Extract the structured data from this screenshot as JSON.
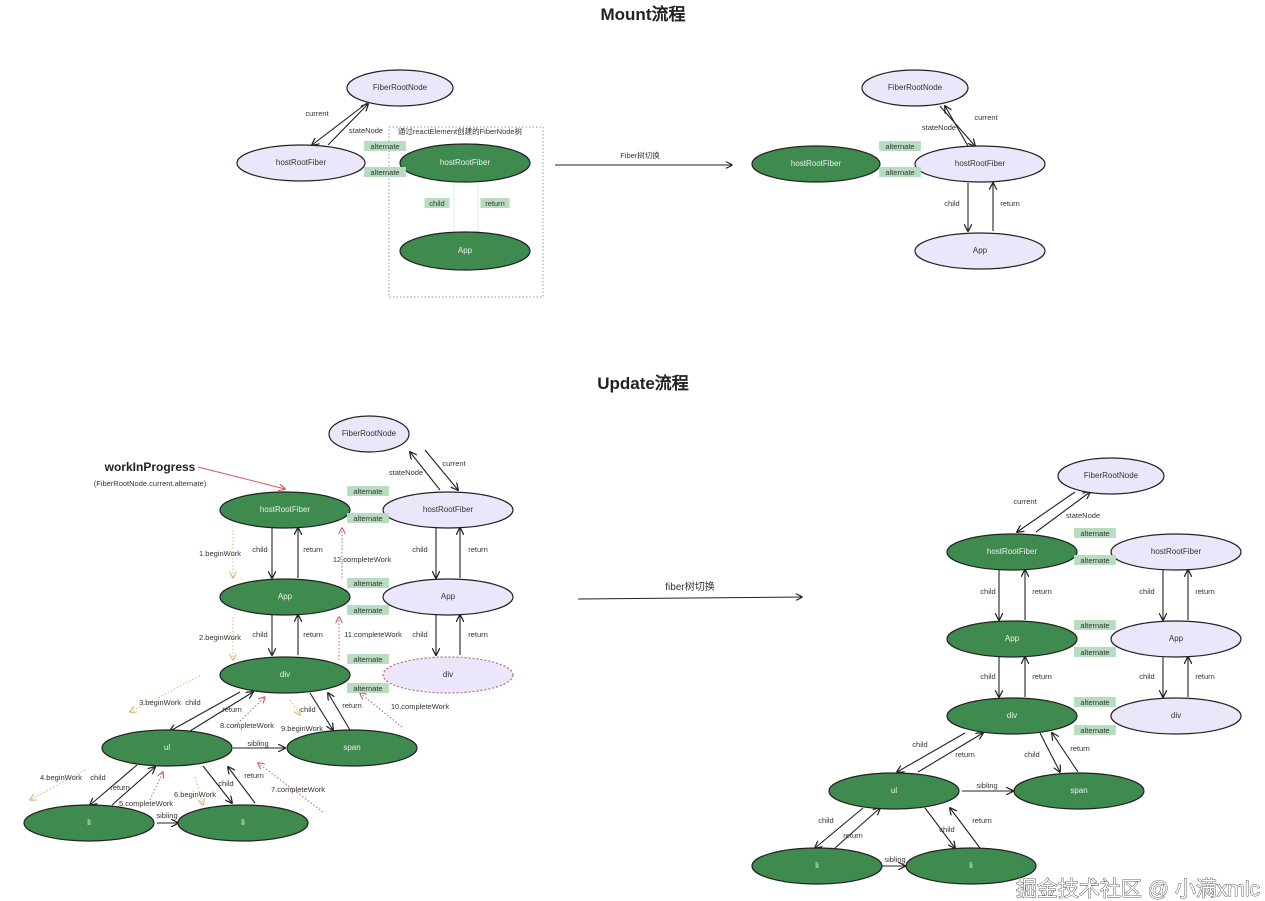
{
  "titles": {
    "mount": "Mount流程",
    "update": "Update流程"
  },
  "colors": {
    "green": "#3f8a4f",
    "lavender": "#ebe6fa",
    "alternate_bg": "#b7dcbf",
    "begin": "#cbbd6c",
    "complete": "#c2607a",
    "wip_arrow": "#d9535f"
  },
  "switch_labels": {
    "mount": "Fiber树切换",
    "update": "fiber树切换"
  },
  "mount_box_label": "通过reactElement创建的FiberNode树",
  "work_in_progress": {
    "title": "workInProgress",
    "subtitle": "(FiberRootNode.current.alternate)"
  },
  "watermark": "掘金技术社区 @ 小满xmlc",
  "nodes": [
    {
      "label": "FiberRootNode",
      "style": "lavender"
    },
    {
      "label": "hostRootFiber",
      "style": "lavender"
    },
    {
      "label": "hostRootFiber",
      "style": "green"
    },
    {
      "label": "App",
      "style": "green"
    },
    {
      "label": "FiberRootNode",
      "style": "lavender"
    },
    {
      "label": "hostRootFiber",
      "style": "green"
    },
    {
      "label": "hostRootFiber",
      "style": "lavender"
    },
    {
      "label": "App",
      "style": "lavender"
    },
    {
      "label": "FiberRootNode",
      "style": "lavender"
    },
    {
      "label": "hostRootFiber",
      "style": "green"
    },
    {
      "label": "hostRootFiber",
      "style": "lavender"
    },
    {
      "label": "App",
      "style": "green"
    },
    {
      "label": "App",
      "style": "lavender"
    },
    {
      "label": "div",
      "style": "green"
    },
    {
      "label": "div",
      "style": "dashed-lavender"
    },
    {
      "label": "ul",
      "style": "green"
    },
    {
      "label": "span",
      "style": "green"
    },
    {
      "label": "li",
      "style": "green"
    },
    {
      "label": "li",
      "style": "green"
    },
    {
      "label": "FiberRootNode",
      "style": "lavender"
    },
    {
      "label": "hostRootFiber",
      "style": "green"
    },
    {
      "label": "hostRootFiber",
      "style": "lavender"
    },
    {
      "label": "App",
      "style": "green"
    },
    {
      "label": "App",
      "style": "lavender"
    },
    {
      "label": "div",
      "style": "green"
    },
    {
      "label": "div",
      "style": "lavender"
    },
    {
      "label": "ul",
      "style": "green"
    },
    {
      "label": "span",
      "style": "green"
    },
    {
      "label": "li",
      "style": "green"
    },
    {
      "label": "li",
      "style": "green"
    }
  ],
  "labels": [
    {
      "text": "current",
      "kind": "edge"
    },
    {
      "text": "stateNode",
      "kind": "edge"
    },
    {
      "text": "alternate",
      "kind": "alternate"
    },
    {
      "text": "alternate",
      "kind": "alternate"
    },
    {
      "text": "child",
      "kind": "alternate"
    },
    {
      "text": "return",
      "kind": "alternate"
    },
    {
      "text": "stateNode",
      "kind": "edge"
    },
    {
      "text": "current",
      "kind": "edge"
    },
    {
      "text": "alternate",
      "kind": "alternate"
    },
    {
      "text": "alternate",
      "kind": "alternate"
    },
    {
      "text": "child",
      "kind": "edge"
    },
    {
      "text": "return",
      "kind": "edge"
    },
    {
      "text": "stateNode",
      "kind": "edge"
    },
    {
      "text": "current",
      "kind": "edge"
    },
    {
      "text": "alternate",
      "kind": "alternate"
    },
    {
      "text": "alternate",
      "kind": "alternate"
    },
    {
      "text": "alternate",
      "kind": "alternate"
    },
    {
      "text": "alternate",
      "kind": "alternate"
    },
    {
      "text": "alternate",
      "kind": "alternate"
    },
    {
      "text": "alternate",
      "kind": "alternate"
    },
    {
      "text": "child",
      "kind": "edge"
    },
    {
      "text": "return",
      "kind": "edge"
    },
    {
      "text": "child",
      "kind": "edge"
    },
    {
      "text": "return",
      "kind": "edge"
    },
    {
      "text": "1.beginWork",
      "kind": "begin"
    },
    {
      "text": "12.completeWork",
      "kind": "complete"
    },
    {
      "text": "2.beginWork",
      "kind": "begin"
    },
    {
      "text": "11.completeWork",
      "kind": "complete"
    },
    {
      "text": "child",
      "kind": "edge"
    },
    {
      "text": "return",
      "kind": "edge"
    },
    {
      "text": "child",
      "kind": "edge"
    },
    {
      "text": "return",
      "kind": "edge"
    },
    {
      "text": "10.completeWork",
      "kind": "complete"
    },
    {
      "text": "3.beginWork",
      "kind": "begin"
    },
    {
      "text": "child",
      "kind": "edge"
    },
    {
      "text": "return",
      "kind": "edge"
    },
    {
      "text": "8.completeWork",
      "kind": "complete"
    },
    {
      "text": "9.beginWork",
      "kind": "begin"
    },
    {
      "text": "child",
      "kind": "edge"
    },
    {
      "text": "return",
      "kind": "edge"
    },
    {
      "text": "sibling",
      "kind": "edge"
    },
    {
      "text": "4.beginWork",
      "kind": "begin"
    },
    {
      "text": "child",
      "kind": "edge"
    },
    {
      "text": "return",
      "kind": "edge"
    },
    {
      "text": "5.completeWork",
      "kind": "complete"
    },
    {
      "text": "6.beginWork",
      "kind": "begin"
    },
    {
      "text": "child",
      "kind": "edge"
    },
    {
      "text": "return",
      "kind": "edge"
    },
    {
      "text": "7.completeWork",
      "kind": "complete"
    },
    {
      "text": "sibling",
      "kind": "edge"
    },
    {
      "text": "current",
      "kind": "edge"
    },
    {
      "text": "stateNode",
      "kind": "edge"
    },
    {
      "text": "alternate",
      "kind": "alternate"
    },
    {
      "text": "alternate",
      "kind": "alternate"
    },
    {
      "text": "alternate",
      "kind": "alternate"
    },
    {
      "text": "alternate",
      "kind": "alternate"
    },
    {
      "text": "alternate",
      "kind": "alternate"
    },
    {
      "text": "alternate",
      "kind": "alternate"
    },
    {
      "text": "child",
      "kind": "edge"
    },
    {
      "text": "return",
      "kind": "edge"
    },
    {
      "text": "child",
      "kind": "edge"
    },
    {
      "text": "return",
      "kind": "edge"
    },
    {
      "text": "child",
      "kind": "edge"
    },
    {
      "text": "return",
      "kind": "edge"
    },
    {
      "text": "child",
      "kind": "edge"
    },
    {
      "text": "return",
      "kind": "edge"
    },
    {
      "text": "child",
      "kind": "edge"
    },
    {
      "text": "return",
      "kind": "edge"
    },
    {
      "text": "child",
      "kind": "edge"
    },
    {
      "text": "return",
      "kind": "edge"
    },
    {
      "text": "sibling",
      "kind": "edge"
    },
    {
      "text": "child",
      "kind": "edge"
    },
    {
      "text": "return",
      "kind": "edge"
    },
    {
      "text": "child",
      "kind": "edge"
    },
    {
      "text": "return",
      "kind": "edge"
    },
    {
      "text": "sibling",
      "kind": "edge"
    }
  ]
}
